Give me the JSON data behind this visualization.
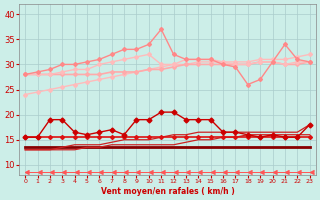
{
  "x": [
    0,
    1,
    2,
    3,
    4,
    5,
    6,
    7,
    8,
    9,
    10,
    11,
    12,
    13,
    14,
    15,
    16,
    17,
    18,
    19,
    20,
    21,
    22,
    23
  ],
  "background_color": "#cceee8",
  "grid_color": "#aacccc",
  "xlabel": "Vent moyen/en rafales ( km/h )",
  "xlabel_color": "#cc0000",
  "tick_color": "#cc0000",
  "ylim": [
    8,
    42
  ],
  "xlim": [
    -0.5,
    23.5
  ],
  "yticks": [
    10,
    15,
    20,
    25,
    30,
    35,
    40
  ],
  "lines": [
    {
      "y": [
        28,
        28,
        28,
        28,
        28,
        28,
        28,
        28.5,
        28.5,
        28.5,
        29,
        29,
        29.5,
        30,
        30,
        30,
        30,
        30,
        30,
        30.5,
        30.5,
        30,
        30,
        30.5
      ],
      "color": "#ffaaaa",
      "lw": 1.2,
      "marker": "D",
      "ms": 2.0,
      "zorder": 3
    },
    {
      "y": [
        28,
        28,
        28,
        28.5,
        29,
        29,
        30,
        30.5,
        31,
        31.5,
        32,
        30,
        30,
        31,
        31,
        31,
        30.5,
        30,
        30,
        30.5,
        30.5,
        30,
        30.5,
        30.5
      ],
      "color": "#ffbbbb",
      "lw": 1.0,
      "marker": "D",
      "ms": 2.0,
      "zorder": 3
    },
    {
      "y": [
        24,
        24.5,
        25,
        25.5,
        26,
        26.5,
        27,
        27.5,
        28,
        28.5,
        29,
        29.5,
        30,
        30,
        30.5,
        30.5,
        30.5,
        30.5,
        30.5,
        31,
        31,
        31,
        31.5,
        32
      ],
      "color": "#ffbbbb",
      "lw": 1.0,
      "marker": "D",
      "ms": 2.0,
      "zorder": 2
    },
    {
      "y": [
        28,
        28.5,
        29,
        30,
        30,
        30.5,
        31,
        32,
        33,
        33,
        34,
        37,
        32,
        31,
        31,
        31,
        30,
        29.5,
        26,
        27,
        30.5,
        34,
        31,
        30.5
      ],
      "color": "#ff8888",
      "lw": 1.0,
      "marker": "D",
      "ms": 2.0,
      "zorder": 4
    },
    {
      "y": [
        15.5,
        15.5,
        15.5,
        15.5,
        15.5,
        15.5,
        15.5,
        15.5,
        15.5,
        15.5,
        15.5,
        15.5,
        15.5,
        15.5,
        15.5,
        15.5,
        15.5,
        15.5,
        15.5,
        15.5,
        15.5,
        15.5,
        15.5,
        15.5
      ],
      "color": "#dd1111",
      "lw": 1.2,
      "marker": "D",
      "ms": 2.0,
      "zorder": 3
    },
    {
      "y": [
        13.5,
        13.5,
        13.5,
        13.5,
        13.5,
        13.5,
        13.5,
        13.5,
        13.5,
        13.5,
        13.5,
        13.5,
        13.5,
        13.5,
        13.5,
        13.5,
        13.5,
        13.5,
        13.5,
        13.5,
        13.5,
        13.5,
        13.5,
        13.5
      ],
      "color": "#880000",
      "lw": 2.0,
      "marker": null,
      "ms": 0,
      "zorder": 2
    },
    {
      "y": [
        13,
        13,
        13,
        13,
        13,
        13.5,
        13.5,
        14,
        14,
        14,
        14,
        14,
        14,
        14.5,
        15,
        15,
        15.5,
        15.5,
        16,
        16,
        16,
        16,
        16,
        16
      ],
      "color": "#cc2222",
      "lw": 0.9,
      "marker": null,
      "ms": 0,
      "zorder": 2
    },
    {
      "y": [
        13,
        13,
        13,
        13.5,
        14,
        14,
        14,
        14.5,
        15,
        15,
        15,
        15.5,
        16,
        16,
        16.5,
        16.5,
        16.5,
        16.5,
        16.5,
        16.5,
        16.5,
        16.5,
        16.5,
        18
      ],
      "color": "#cc2222",
      "lw": 0.9,
      "marker": null,
      "ms": 0,
      "zorder": 2
    },
    {
      "y": [
        15.5,
        15.5,
        19,
        19,
        16.5,
        16,
        16.5,
        17,
        16,
        19,
        19,
        20.5,
        20.5,
        19,
        19,
        19,
        16.5,
        16.5,
        16,
        15.5,
        16,
        15.5,
        15.5,
        18
      ],
      "color": "#cc0000",
      "lw": 1.0,
      "marker": "D",
      "ms": 2.5,
      "zorder": 4
    },
    {
      "y": [
        8.5,
        8.5,
        8.5,
        8.5,
        8.5,
        8.5,
        8.5,
        8.5,
        8.5,
        8.5,
        8.5,
        8.5,
        8.5,
        8.5,
        8.5,
        8.5,
        8.5,
        8.5,
        8.5,
        8.5,
        8.5,
        8.5,
        8.5,
        8.5
      ],
      "color": "#ff5555",
      "lw": 0.7,
      "marker": 4,
      "ms": 3.5,
      "zorder": 2
    }
  ]
}
